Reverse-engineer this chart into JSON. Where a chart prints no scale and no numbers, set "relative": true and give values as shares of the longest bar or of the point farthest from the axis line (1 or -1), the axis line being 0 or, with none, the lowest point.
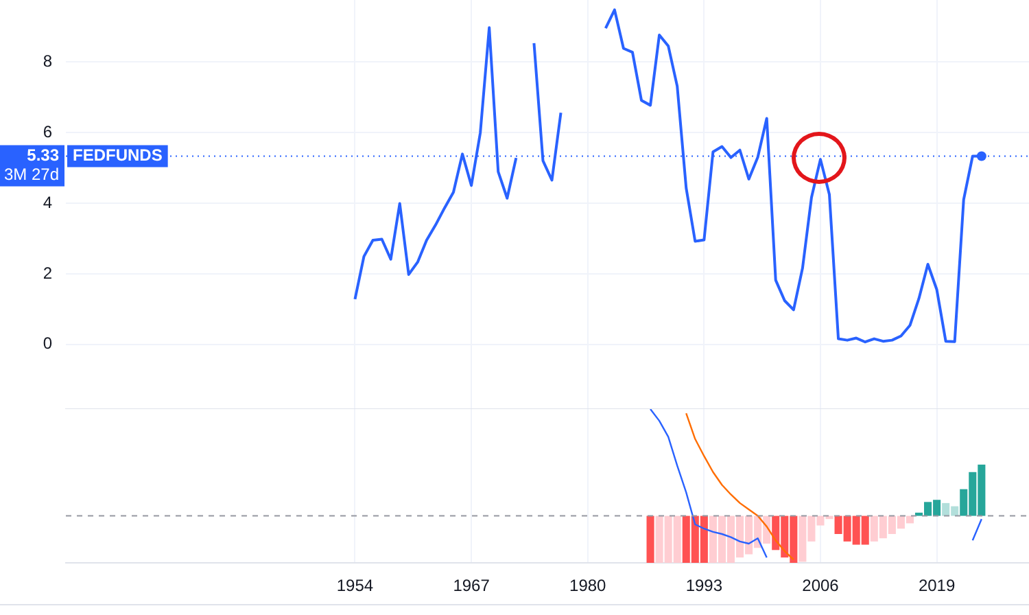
{
  "chart_data": [
    {
      "type": "line",
      "x": [
        1954,
        1955,
        1956,
        1957,
        1958,
        1959,
        1960,
        1961,
        1962,
        1963,
        1964,
        1965,
        1966,
        1967,
        1968,
        1969,
        1970,
        1971,
        1972,
        1973,
        1974,
        1975,
        1976,
        1977,
        1978,
        1979,
        1980,
        1981,
        1982,
        1983,
        1984,
        1985,
        1986,
        1987,
        1988,
        1989,
        1990,
        1991,
        1992,
        1993,
        1994,
        1995,
        1996,
        1997,
        1998,
        1999,
        2000,
        2001,
        2002,
        2003,
        2004,
        2005,
        2006,
        2007,
        2008,
        2009,
        2010,
        2011,
        2012,
        2013,
        2014,
        2015,
        2016,
        2017,
        2018,
        2019,
        2020,
        2021,
        2022,
        2023,
        2024
      ],
      "series": [
        {
          "name": "FEDFUNDS",
          "color": "#2962ff",
          "values": [
            1.28,
            2.49,
            2.95,
            2.98,
            2.41,
            3.99,
            1.98,
            2.33,
            2.95,
            3.38,
            3.86,
            4.31,
            5.39,
            4.5,
            5.99,
            8.97,
            4.89,
            4.14,
            5.28,
            null,
            8.53,
            5.2,
            4.65,
            6.56,
            null,
            null,
            null,
            null,
            8.95,
            9.47,
            8.38,
            8.27,
            6.91,
            6.77,
            8.76,
            8.45,
            7.31,
            4.43,
            2.92,
            2.96,
            5.45,
            5.6,
            5.29,
            5.5,
            4.68,
            5.3,
            6.4,
            1.82,
            1.24,
            0.98,
            2.16,
            4.16,
            5.24,
            4.24,
            0.16,
            0.12,
            0.18,
            0.07,
            0.16,
            0.09,
            0.12,
            0.24,
            0.54,
            1.3,
            2.27,
            1.55,
            0.09,
            0.08,
            4.1,
            5.33,
            5.33
          ]
        }
      ],
      "xlim": [
        1921.7,
        2029.3
      ],
      "xticks": [
        1954,
        1967,
        1980,
        1993,
        2006,
        2019
      ],
      "ylim": [
        -1.83,
        9.75
      ],
      "yticks": [
        0,
        2,
        4,
        6,
        8
      ],
      "grid": true,
      "tick_labels": "y",
      "legend": false,
      "ref_lines": [
        {
          "axis": "y",
          "value": 5.33,
          "label": "5.33",
          "color": "#2962ff",
          "line_style": "dotted"
        }
      ],
      "annotations": [
        "3M 27d"
      ]
    },
    {
      "type": "bar",
      "relative": true,
      "x": [
        1987,
        1988,
        1989,
        1990,
        1991,
        1992,
        1993,
        1994,
        1995,
        1996,
        1997,
        1998,
        1999,
        2000,
        2001,
        2002,
        2003,
        2004,
        2005,
        2006,
        2007,
        2008,
        2009,
        2010,
        2011,
        2012,
        2013,
        2014,
        2015,
        2016,
        2017,
        2018,
        2019,
        2020,
        2021,
        2022,
        2023,
        2024
      ],
      "series": [
        {
          "type": "bar",
          "colors": [
            "#ff5252",
            "#ffcdd2",
            "#ffcdd2",
            "#ffcdd2",
            "#ff5252",
            "#ff5252",
            "#ff5252",
            "#ffcdd2",
            "#ffcdd2",
            "#ffcdd2",
            "#ffcdd2",
            "#ffcdd2",
            "#ffcdd2",
            "#ffcdd2",
            "#ff5252",
            "#ff5252",
            "#ff5252",
            "#ffcdd2",
            "#ffcdd2",
            "#ffcdd2",
            "#ffcdd2",
            "#ff5252",
            "#ff5252",
            "#ff5252",
            "#ff5252",
            "#ffcdd2",
            "#ffcdd2",
            "#ffcdd2",
            "#ffcdd2",
            "#ffcdd2",
            "#26a69a",
            "#26a69a",
            "#26a69a",
            "#b2dfdb",
            "#b2dfdb",
            "#26a69a",
            "#26a69a",
            "#26a69a"
          ],
          "values": [
            -0.44,
            -0.44,
            -0.44,
            -0.44,
            -0.44,
            -0.44,
            -0.44,
            -0.44,
            -0.44,
            -0.44,
            -0.39,
            -0.36,
            -0.3,
            -0.26,
            -0.32,
            -0.39,
            -0.44,
            -0.43,
            -0.24,
            -0.09,
            -0.03,
            -0.17,
            -0.24,
            -0.27,
            -0.27,
            -0.24,
            -0.21,
            -0.17,
            -0.12,
            -0.07,
            0.03,
            0.13,
            0.15,
            0.12,
            0.09,
            0.25,
            0.41,
            0.48
          ]
        },
        {
          "type": "line",
          "color": "#2962ff",
          "values": [
            1,
            0.89,
            0.74,
            0.47,
            0.22,
            -0.08,
            -0.12,
            -0.15,
            -0.17,
            -0.2,
            -0.24,
            -0.26,
            -0.21,
            -0.39,
            null,
            null,
            null,
            null,
            null,
            null,
            null,
            null,
            null,
            null,
            null,
            null,
            null,
            null,
            null,
            null,
            null,
            null,
            null,
            null,
            null,
            null,
            -0.23,
            -0.03
          ]
        },
        {
          "type": "line",
          "color": "#ff6d00",
          "x": [
            1991,
            1992,
            1993,
            1994,
            1995,
            1996,
            1997,
            1998,
            1999,
            2000,
            2001,
            2002,
            2003
          ],
          "values": [
            0.96,
            0.72,
            0.56,
            0.41,
            0.29,
            0.2,
            0.12,
            0.06,
            0,
            -0.1,
            -0.23,
            -0.33,
            -0.41
          ]
        }
      ],
      "xlim": [
        1921.7,
        2029.3
      ],
      "xticks": [
        1954,
        1967,
        1980,
        1993,
        2006,
        2019
      ],
      "grid": "x",
      "tick_labels": "x",
      "legend": false,
      "ref_lines": [
        {
          "axis": "y",
          "value": 0,
          "color": "#9598a1",
          "line_style": "dashed"
        }
      ]
    }
  ]
}
